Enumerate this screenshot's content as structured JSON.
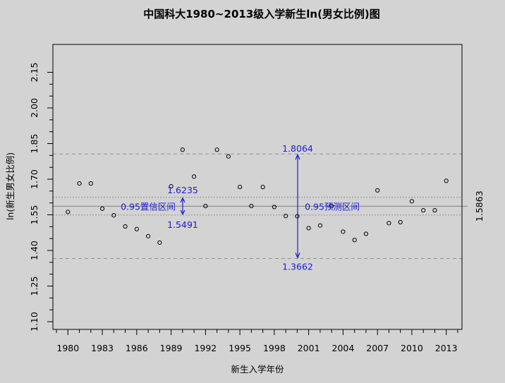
{
  "chart_data": {
    "type": "scatter",
    "title": "中国科大1980~2013级入学新生ln(男女比例)图",
    "xlabel": "新生入学年份",
    "ylabel": "ln(新生男女比例)",
    "xlim": [
      1979,
      2014.5
    ],
    "ylim": [
      1.08,
      2.24
    ],
    "x_ticks": [
      1980,
      1983,
      1986,
      1989,
      1992,
      1995,
      1998,
      2001,
      2004,
      2007,
      2010,
      2013
    ],
    "y_ticks": [
      "1.10",
      "1.25",
      "1.40",
      "1.55",
      "1.70",
      "1.85",
      "2.00",
      "2.15"
    ],
    "series": [
      {
        "name": "ln(新生男女比例)",
        "x": [
          1980,
          1981,
          1982,
          1983,
          1984,
          1985,
          1986,
          1987,
          1988,
          1989,
          1990,
          1991,
          1992,
          1993,
          1994,
          1995,
          1996,
          1997,
          1998,
          1999,
          2000,
          2001,
          2002,
          2003,
          2004,
          2005,
          2006,
          2007,
          2008,
          2009,
          2010,
          2011,
          2012,
          2013
        ],
        "values": [
          1.562,
          1.682,
          1.682,
          1.576,
          1.548,
          1.501,
          1.49,
          1.46,
          1.433,
          1.67,
          1.824,
          1.711,
          1.587,
          1.824,
          1.796,
          1.667,
          1.587,
          1.667,
          1.583,
          1.545,
          1.544,
          1.494,
          1.505,
          1.587,
          1.479,
          1.444,
          1.47,
          1.653,
          1.515,
          1.519,
          1.607,
          1.569,
          1.569,
          1.693
        ]
      }
    ],
    "reference_lines": {
      "mean": 1.5863,
      "confidence_lower": 1.5491,
      "confidence_upper": 1.6235,
      "prediction_lower": 1.3662,
      "prediction_upper": 1.8064
    },
    "annotations": {
      "mean_label": "1.5863",
      "confidence_label": "0.95置信区间",
      "confidence_upper_label": "1.6235",
      "confidence_lower_label": "1.5491",
      "prediction_label": "0.95预测区间",
      "prediction_upper_label": "1.8064",
      "prediction_lower_label": "1.3662"
    },
    "colors": {
      "annotation": "#1a1ad6",
      "points": "#000000",
      "background": "#d3d3d3"
    }
  }
}
